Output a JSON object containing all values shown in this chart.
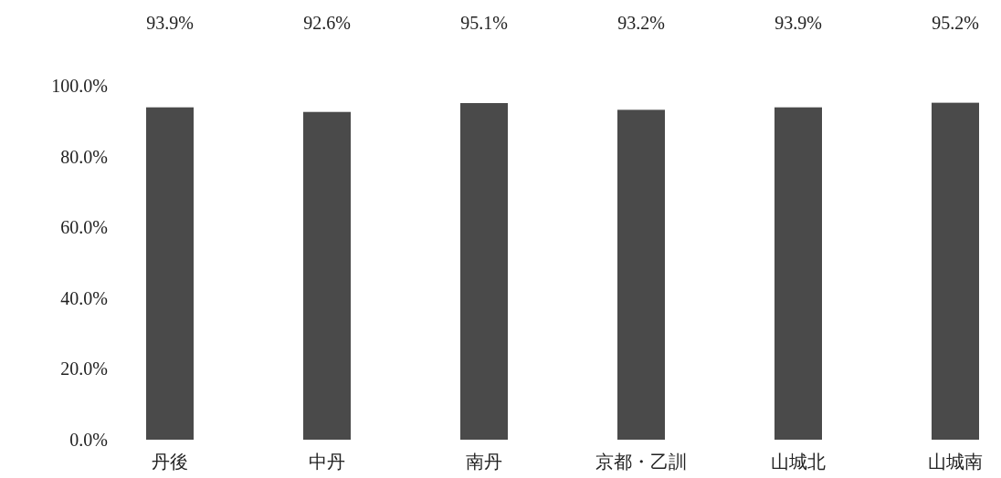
{
  "chart_data": {
    "type": "bar",
    "categories": [
      "丹後",
      "中丹",
      "南丹",
      "京都・乙訓",
      "山城北",
      "山城南"
    ],
    "values": [
      93.9,
      92.6,
      95.1,
      93.2,
      93.9,
      95.2
    ],
    "value_labels": [
      "93.9%",
      "92.6%",
      "95.1%",
      "93.2%",
      "93.9%",
      "95.2%"
    ],
    "color": "#4a4a4a",
    "ylim": [
      0,
      100
    ],
    "yticks": [
      {
        "value": 0,
        "label": "0.0%"
      },
      {
        "value": 20,
        "label": "20.0%"
      },
      {
        "value": 40,
        "label": "40.0%"
      },
      {
        "value": 60,
        "label": "60.0%"
      },
      {
        "value": 80,
        "label": "80.0%"
      },
      {
        "value": 100,
        "label": "100.0%"
      }
    ],
    "grid": false
  }
}
